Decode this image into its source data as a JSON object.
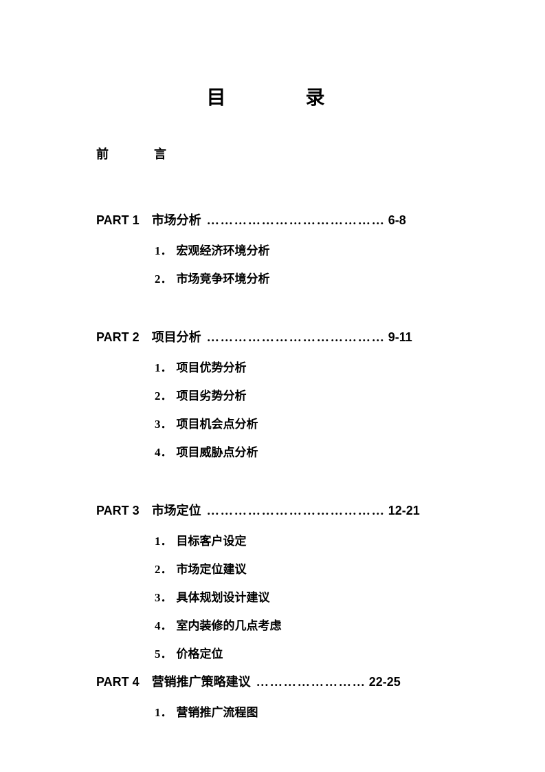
{
  "title": "目　　录",
  "preface": "前　　言",
  "dots": "…………………………………",
  "dotsLong": "……………………",
  "parts": [
    {
      "label": "PART 1",
      "name": "市场分析",
      "pages": "6-8",
      "items": [
        {
          "num": "1．",
          "text": "宏观经济环境分析"
        },
        {
          "num": "2．",
          "text": "市场竞争环境分析"
        }
      ]
    },
    {
      "label": "PART 2",
      "name": "项目分析",
      "pages": "9-11",
      "items": [
        {
          "num": "1．",
          "text": "项目优势分析"
        },
        {
          "num": "2．",
          "text": "项目劣势分析"
        },
        {
          "num": "3．",
          "text": "项目机会点分析"
        },
        {
          "num": "4．",
          "text": "项目威胁点分析"
        }
      ]
    },
    {
      "label": "PART 3",
      "name": "市场定位",
      "pages": "12-21",
      "items": [
        {
          "num": "1．",
          "text": "目标客户设定"
        },
        {
          "num": "2．",
          "text": "市场定位建议"
        },
        {
          "num": "3．",
          "text": "具体规划设计建议"
        },
        {
          "num": "4．",
          "text": "室内装修的几点考虑"
        },
        {
          "num": "5．",
          "text": "价格定位"
        }
      ]
    },
    {
      "label": "PART 4",
      "name": "营销推广策略建议",
      "pages": "22-25",
      "items": [
        {
          "num": "1．",
          "text": "营销推广流程图"
        }
      ]
    }
  ]
}
